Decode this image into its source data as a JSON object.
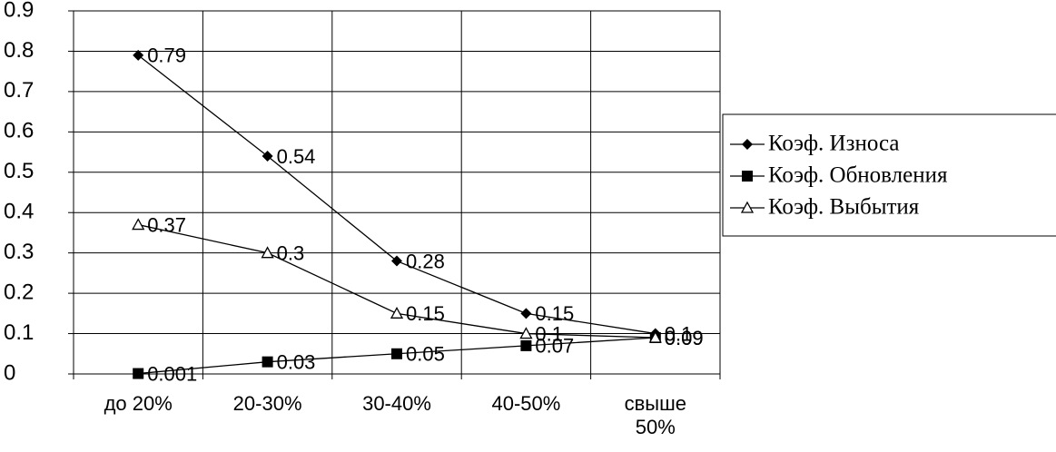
{
  "chart_data": {
    "type": "line",
    "categories": [
      "до 20%",
      "20-30%",
      "30-40%",
      "40-50%",
      "свыше 50%"
    ],
    "series": [
      {
        "name": "Коэф. Износа",
        "color": "#000000",
        "marker": "diamond",
        "values": [
          0.79,
          0.54,
          0.28,
          0.15,
          0.1
        ]
      },
      {
        "name": "Коэф. Обновления",
        "color": "#000000",
        "marker": "square",
        "values": [
          0.001,
          0.03,
          0.05,
          0.07,
          0.09
        ]
      },
      {
        "name": "Коэф. Выбытия",
        "color": "#000000",
        "marker": "triangle",
        "values": [
          0.37,
          0.3,
          0.15,
          0.1,
          0.09
        ]
      }
    ],
    "ylim": [
      0,
      0.9
    ],
    "yticks": [
      0,
      0.1,
      0.2,
      0.3,
      0.4,
      0.5,
      0.6,
      0.7,
      0.8,
      0.9
    ],
    "grid": true,
    "legend": "right"
  }
}
